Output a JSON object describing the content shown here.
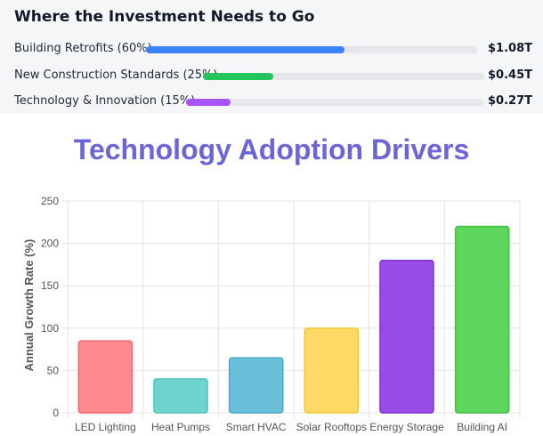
{
  "investment": {
    "title": "Where the Investment Needs to Go",
    "items": [
      {
        "label": "Building Retrofits (60%)",
        "value": "$1.08T",
        "fraction": 0.6,
        "color": "#3b82f6"
      },
      {
        "label": "New Construction Standards (25%)",
        "value": "$0.45T",
        "fraction": 0.25,
        "color": "#22c55e"
      },
      {
        "label": "Technology & Innovation (15%)",
        "value": "$0.27T",
        "fraction": 0.15,
        "color": "#a855f7"
      }
    ]
  },
  "chart_data": {
    "type": "bar",
    "title": "Technology Adoption Drivers",
    "xlabel": "",
    "ylabel": "Annual Growth Rate (%)",
    "categories": [
      "LED Lighting",
      "Heat Pumps",
      "Smart HVAC",
      "Solar Rooftops",
      "Energy Storage",
      "Building AI"
    ],
    "values": [
      85,
      40,
      65,
      100,
      180,
      220
    ],
    "ylim": [
      0,
      250
    ],
    "yticks": [
      0,
      50,
      100,
      150,
      200,
      250
    ],
    "grid": true,
    "colors": [
      "#ff8a8e",
      "#6fd4cf",
      "#6ac0d9",
      "#ffd966",
      "#9a4ce6",
      "#5cd65c"
    ],
    "border_colors": [
      "#f26b72",
      "#4fc2bc",
      "#4aa9c6",
      "#f2c73d",
      "#8234d4",
      "#43c043"
    ]
  }
}
